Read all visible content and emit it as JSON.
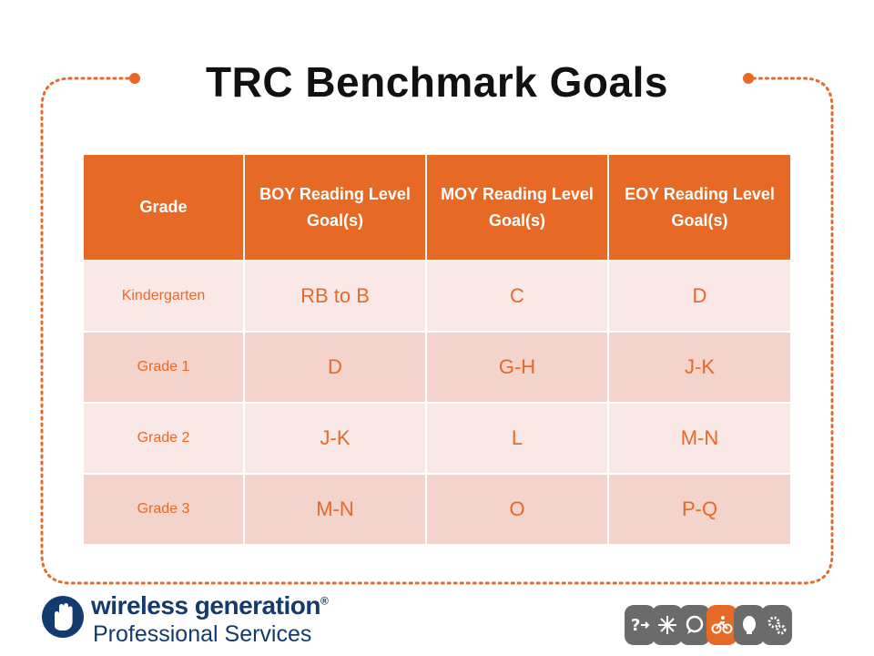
{
  "title": "TRC Benchmark Goals",
  "colors": {
    "accent": "#e66a25",
    "row_light": "#f9e8e6",
    "row_dark": "#f4d3cc",
    "logo_blue": "#143b6e",
    "icon_grey": "#6b6b6b"
  },
  "table": {
    "headers": [
      "Grade",
      "BOY Reading Level Goal(s)",
      "MOY Reading Level Goal(s)",
      "EOY Reading Level Goal(s)"
    ],
    "rows": [
      [
        "Kindergarten",
        "RB to B",
        "C",
        "D"
      ],
      [
        "Grade 1",
        "D",
        "G-H",
        "J-K"
      ],
      [
        "Grade 2",
        "J-K",
        "L",
        "M-N"
      ],
      [
        "Grade 3",
        "M-N",
        "O",
        "P-Q"
      ]
    ]
  },
  "logo": {
    "name": "wireless generation",
    "registered": "®",
    "tagline": "Professional Services"
  },
  "icon_strip": [
    "question-arrow-icon",
    "sparkle-icon",
    "chat-bubble-icon",
    "bicycle-icon",
    "lightbulb-icon",
    "gears-icon"
  ]
}
